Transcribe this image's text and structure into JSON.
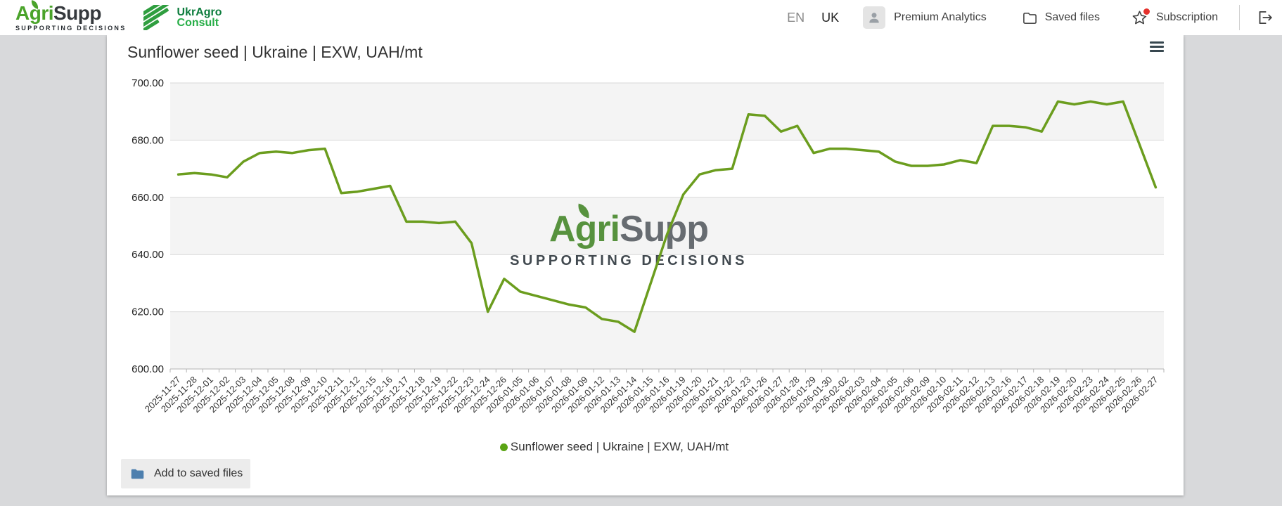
{
  "header": {
    "logo": {
      "brand_green": "Agri",
      "brand_dark": "Supp",
      "tagline": "SUPPORTING DECISIONS"
    },
    "partner_logo": {
      "line1": "UkrAgro",
      "line2": "Consult"
    },
    "languages": [
      {
        "label": "EN",
        "active": false
      },
      {
        "label": "UK",
        "active": true
      }
    ],
    "nav": {
      "premium": "Premium Analytics",
      "saved_files": "Saved files",
      "subscription": "Subscription"
    }
  },
  "card": {
    "title": "Sunflower seed | Ukraine | EXW, UAH/mt",
    "watermark": {
      "brand_green": "Agri",
      "brand_dark": "Supp",
      "tagline": "SUPPORTING DECISIONS"
    },
    "legend": {
      "label": "Sunflower seed | Ukraine | EXW, UAH/mt",
      "dot_color": "#5aa414"
    },
    "save_button_label": "Add to saved files"
  },
  "colors": {
    "line_green": "#6b9d1e",
    "band_gray": "#f4f4f4",
    "grid_gray": "#d9d9d9",
    "axis_gray": "#b3b3b3",
    "page_background": "#d8d9db",
    "badge_red": "#e5322d",
    "folder_blue": "#4d7fae"
  },
  "chart_data": {
    "type": "line",
    "title": "Sunflower seed | Ukraine | EXW, UAH/mt",
    "xlabel": "",
    "ylabel": "",
    "ylim": [
      600,
      700
    ],
    "y_tick_step": 20,
    "y_tick_labels": [
      "700.00",
      "680.00",
      "660.00",
      "640.00",
      "620.00",
      "600.00"
    ],
    "grid": true,
    "alternating_bands": true,
    "legend_position": "bottom",
    "categories": [
      "2025-11-27",
      "2025-11-28",
      "2025-12-01",
      "2025-12-02",
      "2025-12-03",
      "2025-12-04",
      "2025-12-05",
      "2025-12-08",
      "2025-12-09",
      "2025-12-10",
      "2025-12-11",
      "2025-12-12",
      "2025-12-15",
      "2025-12-16",
      "2025-12-17",
      "2025-12-18",
      "2025-12-19",
      "2025-12-22",
      "2025-12-23",
      "2025-12-24",
      "2025-12-26",
      "2026-01-05",
      "2026-01-06",
      "2026-01-07",
      "2026-01-08",
      "2026-01-09",
      "2026-01-12",
      "2026-01-13",
      "2026-01-14",
      "2026-01-15",
      "2026-01-16",
      "2026-01-19",
      "2026-01-20",
      "2026-01-21",
      "2026-01-22",
      "2026-01-23",
      "2026-01-26",
      "2026-01-27",
      "2026-01-28",
      "2026-01-29",
      "2026-01-30",
      "2026-02-02",
      "2026-02-03",
      "2026-02-04",
      "2026-02-05",
      "2026-02-06",
      "2026-02-09",
      "2026-02-10",
      "2026-02-11",
      "2026-02-12",
      "2026-02-13",
      "2026-02-16",
      "2026-02-17",
      "2026-02-18",
      "2026-02-19",
      "2026-02-20",
      "2026-02-23",
      "2026-02-24",
      "2026-02-25",
      "2026-02-26",
      "2026-02-27"
    ],
    "series": [
      {
        "name": "Sunflower seed | Ukraine | EXW, UAH/mt",
        "color": "#6b9d1e",
        "values": [
          668,
          668.5,
          668,
          667,
          672.5,
          675.5,
          676,
          675.5,
          676.5,
          677,
          661.5,
          662,
          663,
          664,
          651.5,
          651.5,
          651,
          651.5,
          644,
          620,
          631.5,
          627,
          625.5,
          624,
          622.5,
          621.5,
          617.5,
          616.5,
          613,
          630,
          647,
          661,
          668,
          669.5,
          670,
          689,
          688.5,
          683,
          685,
          675.5,
          677,
          677,
          676.5,
          676,
          672.5,
          671,
          671,
          671.5,
          673,
          672,
          685,
          685,
          684.5,
          683,
          693.5,
          692.5,
          693.5,
          692.5,
          693.5,
          678.5,
          663.5
        ]
      }
    ]
  }
}
